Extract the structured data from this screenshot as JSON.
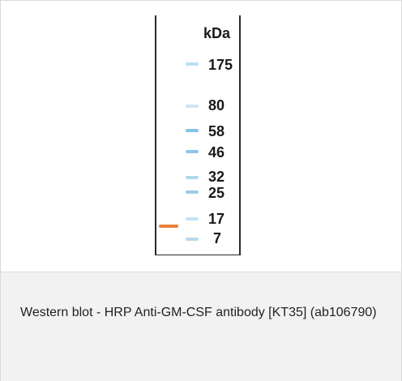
{
  "figure": {
    "unit_label": "kDa",
    "markers": [
      "175",
      "80",
      "58",
      "46",
      "32",
      "25",
      "17",
      "7"
    ],
    "ladder_color": "#6fb8e0",
    "sample_band_color": "#e8813b"
  },
  "caption": {
    "text": "Western blot - HRP Anti-GM-CSF antibody [KT35] (ab106790)"
  }
}
